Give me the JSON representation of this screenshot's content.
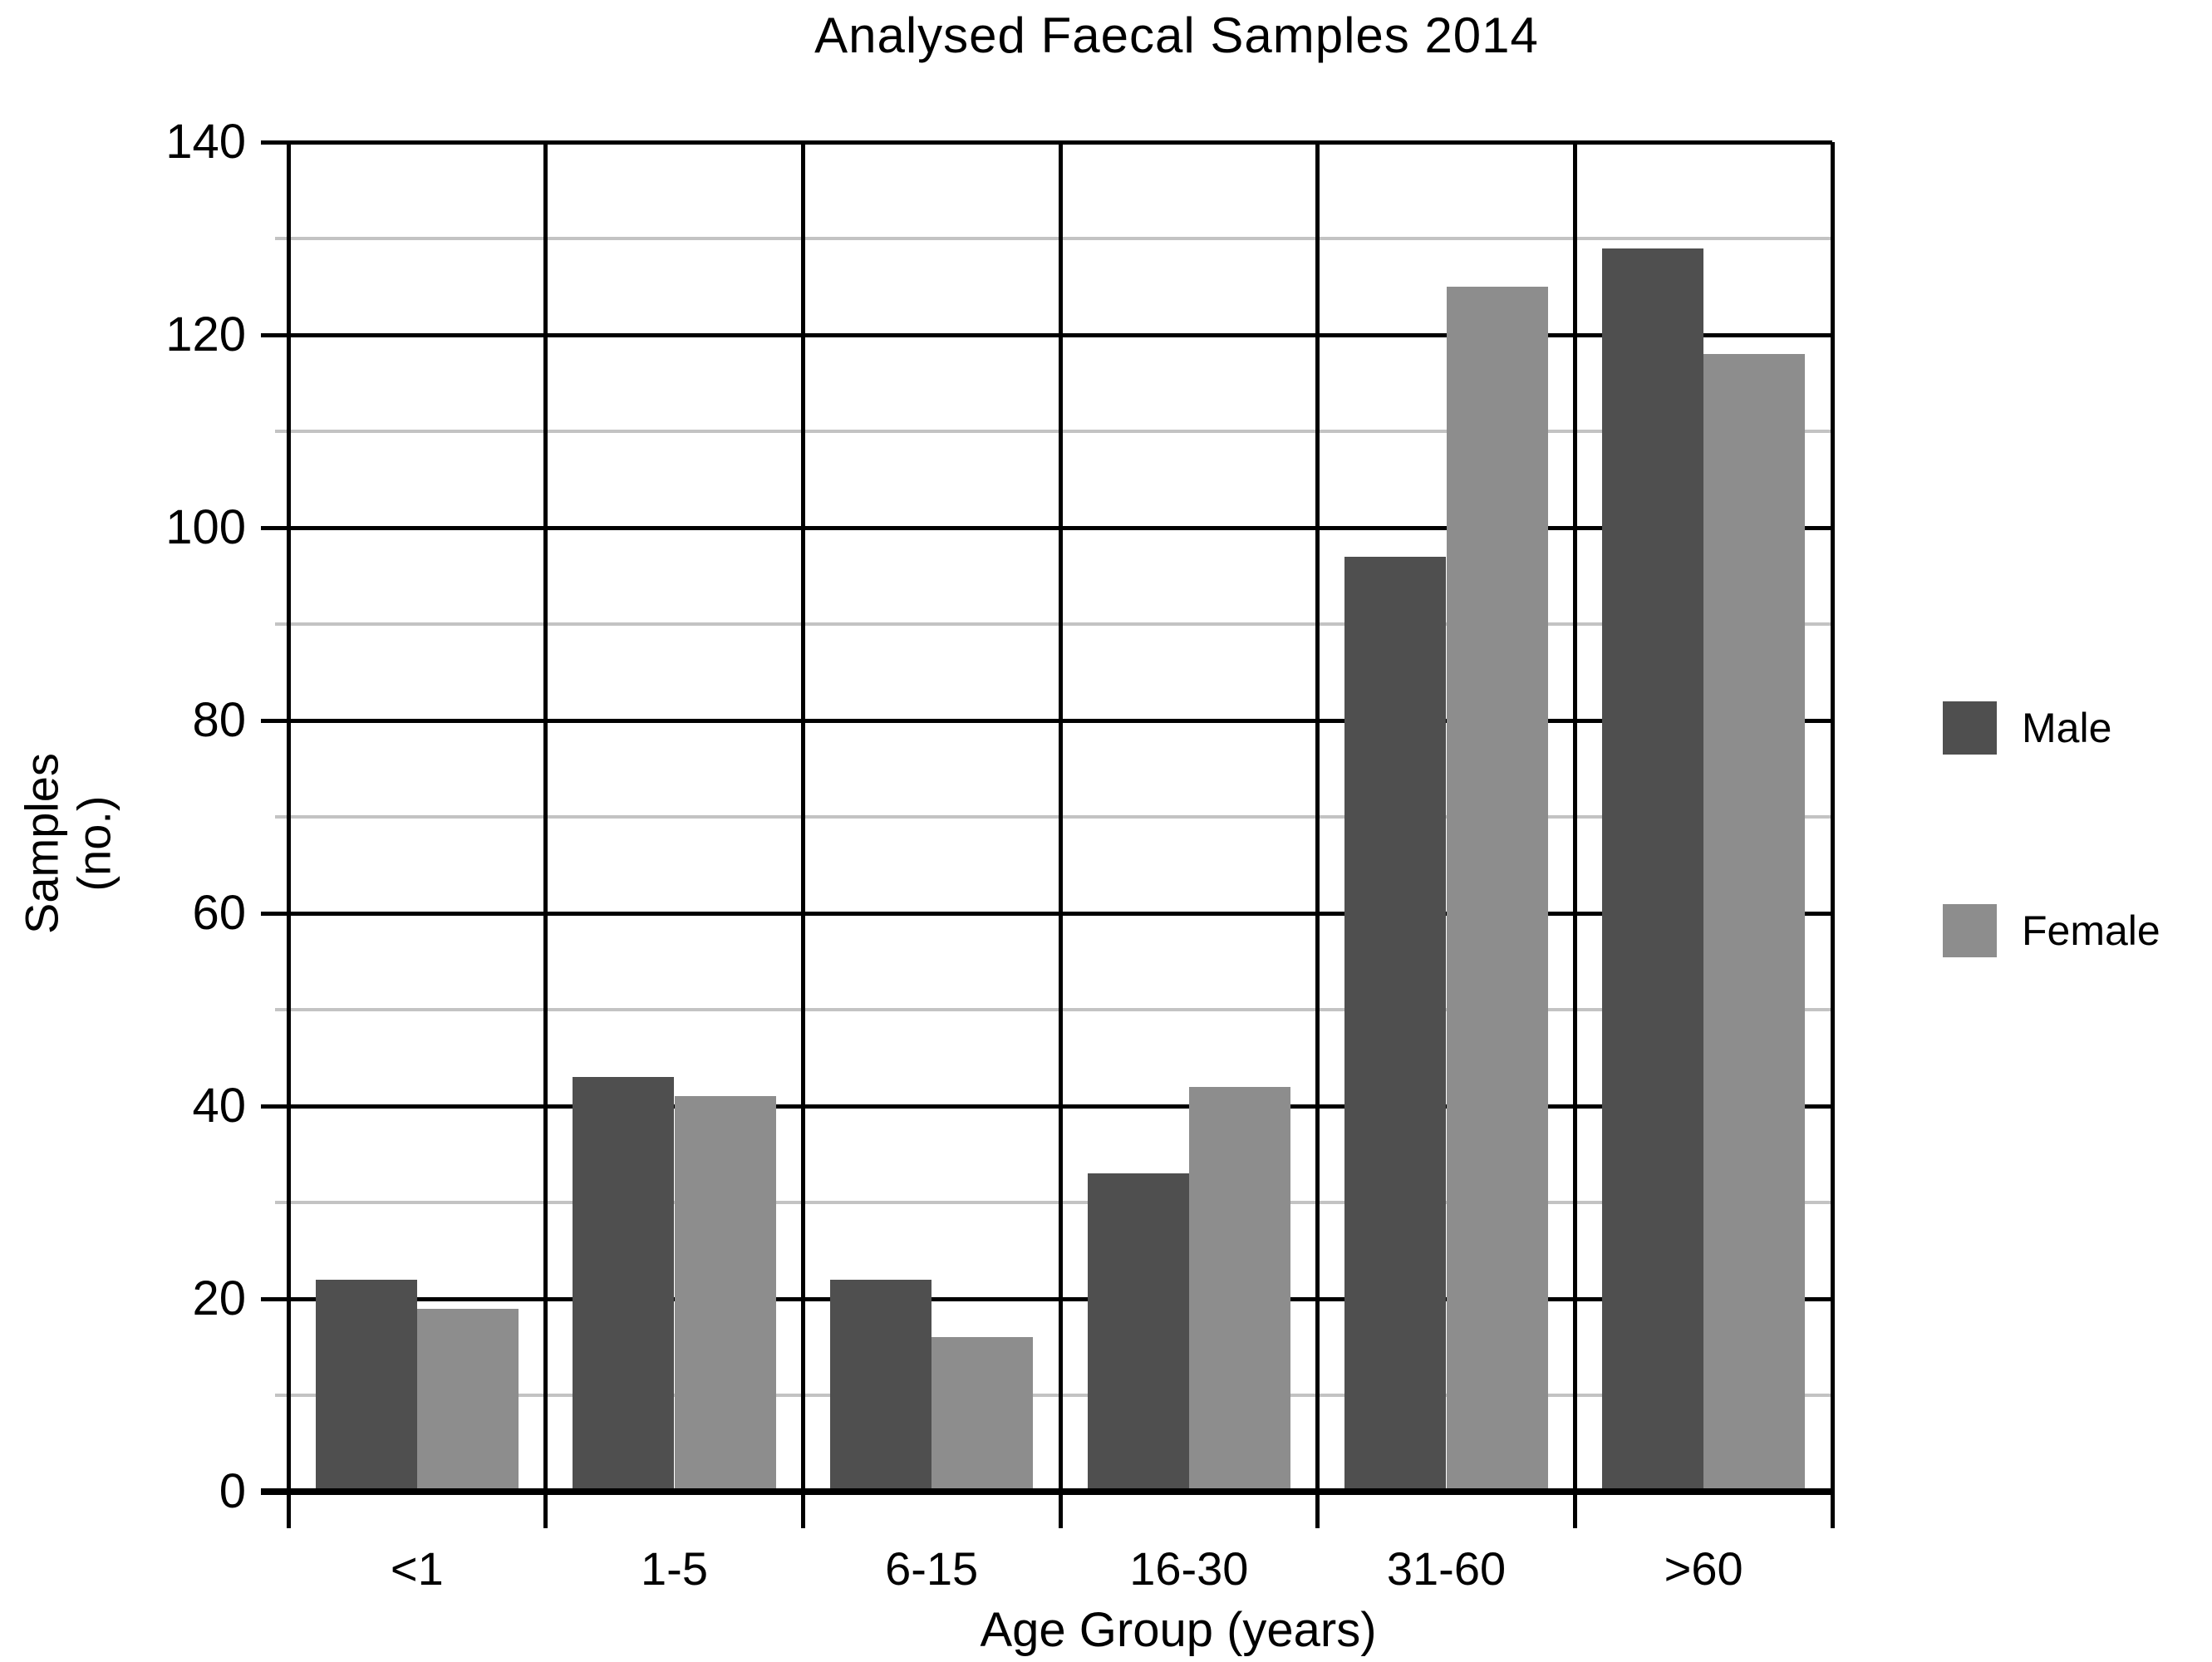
{
  "chart_data": {
    "type": "bar",
    "title": "Analysed Faecal Samples 2014",
    "xlabel": "Age Group (years)",
    "ylabel": "Samples\n(no.)",
    "categories": [
      "<1",
      "1-5",
      "6-15",
      "16-30",
      "31-60",
      ">60"
    ],
    "series": [
      {
        "name": "Male",
        "color": "#4f4f4f",
        "values": [
          22,
          43,
          22,
          33,
          97,
          129
        ]
      },
      {
        "name": "Female",
        "color": "#8d8d8d",
        "values": [
          19,
          41,
          16,
          42,
          125,
          118
        ]
      }
    ],
    "ylim": [
      0,
      140
    ],
    "ytick_step": 20,
    "yminor_step": 10,
    "grid": true,
    "gridline_major_color": "#000000",
    "gridline_minor_color": "#c3c3c3",
    "legend_position": "right",
    "legend_labels": [
      "Male",
      "Female"
    ]
  }
}
